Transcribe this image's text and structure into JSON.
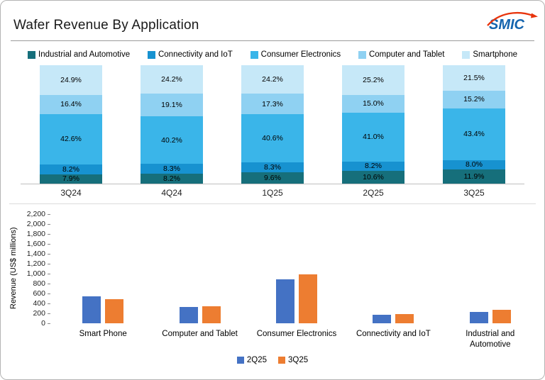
{
  "page": {
    "title": "Wafer Revenue By Application",
    "logo_text": "SMIC"
  },
  "colors": {
    "logo_blue": "#1464ae",
    "logo_red": "#e8340c",
    "industrial_and_automotive": "#166f7b",
    "connectivity_and_iot": "#1792d0",
    "consumer_electronics": "#3ab5e9",
    "computer_and_tablet": "#8fd1f2",
    "smartphone": "#c6e8f8",
    "bar_2q25": "#4472c4",
    "bar_3q25": "#ed7d31"
  },
  "chart_data": [
    {
      "type": "bar",
      "subtype": "stacked-100-percent",
      "legend_position": "top",
      "value_suffix": "%",
      "categories": [
        "3Q24",
        "4Q24",
        "1Q25",
        "2Q25",
        "3Q25"
      ],
      "stack_order_bottom_to_top": [
        "Industrial and Automotive",
        "Connectivity and IoT",
        "Consumer Electronics",
        "Computer and Tablet",
        "Smartphone"
      ],
      "series": [
        {
          "name": "Industrial and Automotive",
          "color": "#166f7b",
          "values": [
            7.9,
            8.2,
            9.6,
            10.6,
            11.9
          ]
        },
        {
          "name": "Connectivity and IoT",
          "color": "#1792d0",
          "values": [
            8.2,
            8.3,
            8.3,
            8.2,
            8.0
          ]
        },
        {
          "name": "Consumer Electronics",
          "color": "#3ab5e9",
          "values": [
            42.6,
            40.2,
            40.6,
            41.0,
            43.4
          ]
        },
        {
          "name": "Computer and Tablet",
          "color": "#8fd1f2",
          "values": [
            16.4,
            19.1,
            17.3,
            15.0,
            15.2
          ]
        },
        {
          "name": "Smartphone",
          "color": "#c6e8f8",
          "values": [
            24.9,
            24.2,
            24.2,
            25.2,
            21.5
          ]
        }
      ]
    },
    {
      "type": "bar",
      "subtype": "grouped",
      "legend_position": "bottom",
      "ylabel": "Revenue (US$ millions)",
      "ylim": [
        0,
        2200
      ],
      "ytick_step": 200,
      "yticks_top_to_bottom": [
        "2,200",
        "2,000",
        "1,800",
        "1,600",
        "1,400",
        "1,200",
        "1,000",
        "800",
        "600",
        "400",
        "200",
        "0"
      ],
      "categories": [
        "Smart Phone",
        "Computer and Tablet",
        "Consumer Electronics",
        "Connectivity and IoT",
        "Industrial and Automotive"
      ],
      "series": [
        {
          "name": "2Q25",
          "color": "#4472c4",
          "values": [
            545,
            325,
            890,
            175,
            230
          ]
        },
        {
          "name": "3Q25",
          "color": "#ed7d31",
          "values": [
            490,
            350,
            990,
            185,
            270
          ]
        }
      ]
    }
  ]
}
